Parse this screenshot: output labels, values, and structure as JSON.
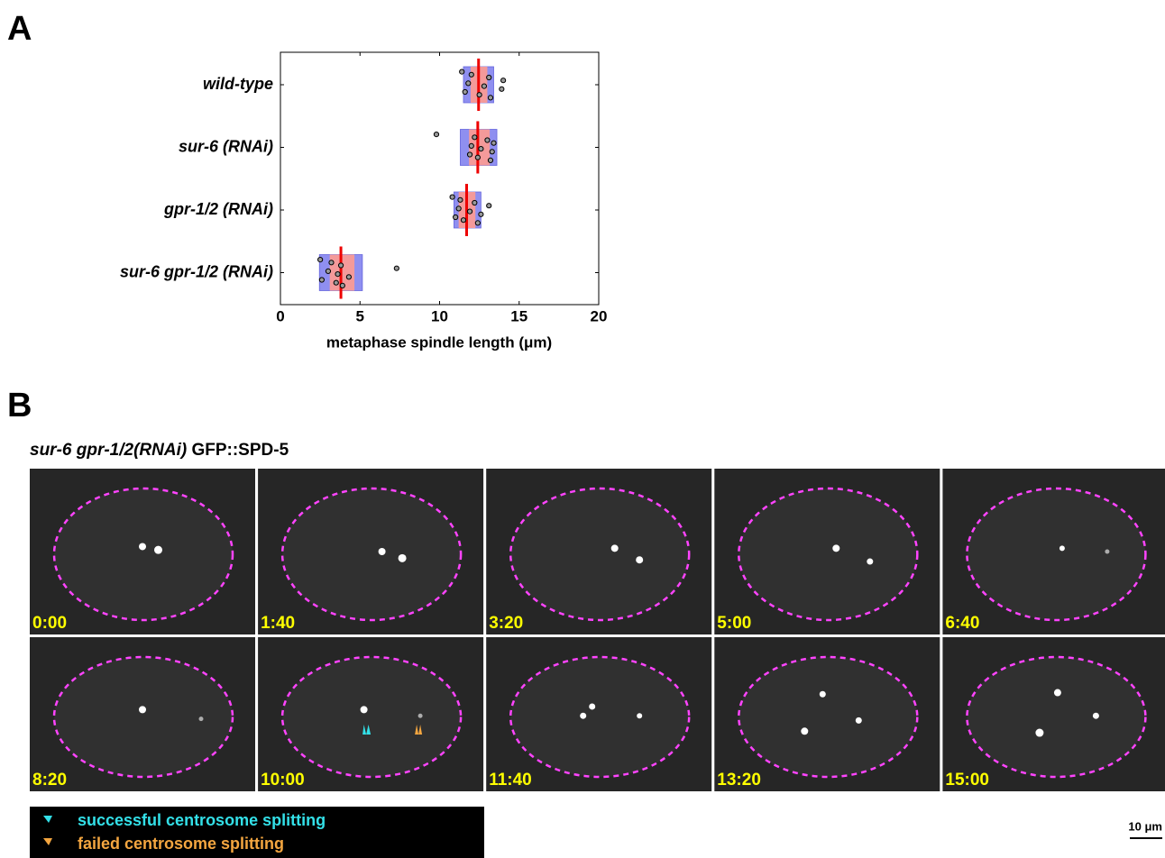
{
  "panel_a_label": "A",
  "panel_b_label": "B",
  "chart_data": {
    "type": "box",
    "categories": [
      "wild-type",
      "sur-6 (RNAi)",
      "gpr-1/2 (RNAi)",
      "sur-6 gpr-1/2 (RNAi)"
    ],
    "xlabel": "metaphase spindle length (μm)",
    "xlim": [
      0,
      20
    ],
    "xticks": [
      0,
      5,
      10,
      15,
      20
    ],
    "outer_color": "#8f8ff0",
    "inner_color": "#f49a9a",
    "center_color": "#ee0000",
    "groups": [
      {
        "outer": [
          11.5,
          13.4
        ],
        "inner": [
          11.95,
          13.0
        ],
        "center": 12.45,
        "points": [
          11.4,
          11.6,
          11.8,
          12.0,
          12.5,
          12.8,
          13.1,
          13.2,
          13.9,
          14.0
        ]
      },
      {
        "outer": [
          11.3,
          13.6
        ],
        "inner": [
          11.85,
          13.15
        ],
        "center": 12.4,
        "points": [
          9.8,
          11.9,
          12.0,
          12.2,
          12.4,
          12.6,
          13.0,
          13.2,
          13.3,
          13.4
        ]
      },
      {
        "outer": [
          10.9,
          12.6
        ],
        "inner": [
          11.2,
          12.25
        ],
        "center": 11.7,
        "points": [
          10.8,
          11.0,
          11.2,
          11.3,
          11.5,
          11.9,
          12.2,
          12.4,
          12.6,
          13.1
        ]
      },
      {
        "outer": [
          2.45,
          5.15
        ],
        "inner": [
          3.1,
          4.65
        ],
        "center": 3.8,
        "points": [
          2.5,
          2.6,
          3.0,
          3.2,
          3.5,
          3.6,
          3.8,
          3.9,
          4.3,
          7.3
        ]
      }
    ]
  },
  "panel_b": {
    "title_italic": "sur-6 gpr-1/2(RNAi)",
    "title_rest": "GFP::SPD-5",
    "timestamps": [
      "0:00",
      "1:40",
      "3:20",
      "5:00",
      "6:40",
      "8:20",
      "10:00",
      "11:40",
      "13:20",
      "15:00"
    ],
    "legend": [
      "successful centrosome splitting",
      "failed centrosome splitting"
    ],
    "scale_bar": "10 μm"
  }
}
